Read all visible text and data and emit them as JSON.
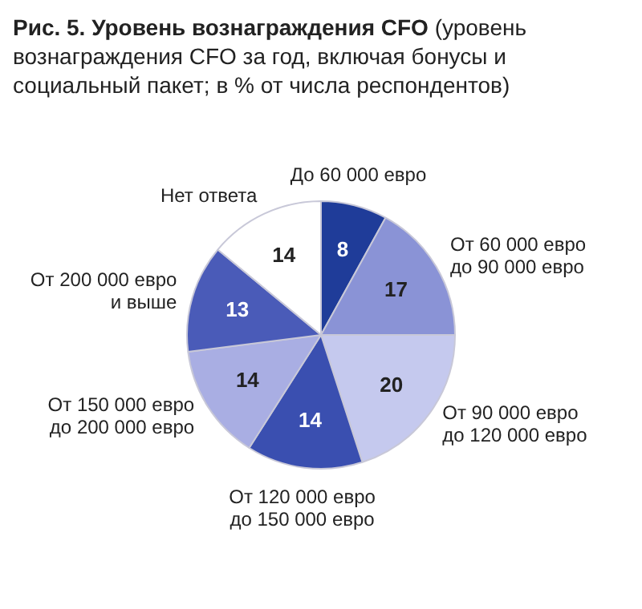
{
  "chart_data": {
    "type": "pie",
    "title": "Рис. 5. Уровень вознаграждения CFO",
    "subtitle": "(уровень вознаграждения CFO за год, включая бонусы и социальный пакет; в % от числа респондентов)",
    "categories": [
      "До 60 000 евро",
      "От 60 000 евро до 90 000 евро",
      "От 90 000 евро до 120 000 евро",
      "От 120 000 евро до 150 000 евро",
      "От 150 000 евро до 200 000 евро",
      "От 200 000 евро и выше",
      "Нет ответа"
    ],
    "values": [
      8,
      17,
      20,
      14,
      14,
      13,
      14
    ],
    "colors": [
      "#1f3c99",
      "#8a93d6",
      "#c5c9ee",
      "#3a4fb0",
      "#a9aee3",
      "#4a5bb8",
      "#ffffff"
    ],
    "data_labels": true
  }
}
